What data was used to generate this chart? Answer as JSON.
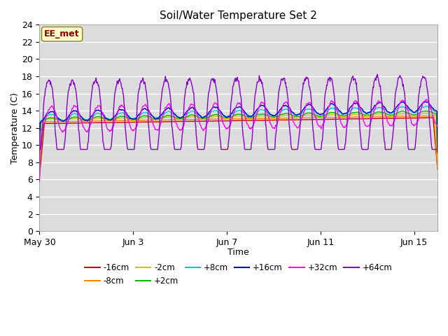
{
  "title": "Soil/Water Temperature Set 2",
  "xlabel": "Time",
  "ylabel": "Temperature (C)",
  "ylim": [
    0,
    24
  ],
  "yticks": [
    0,
    2,
    4,
    6,
    8,
    10,
    12,
    14,
    16,
    18,
    20,
    22,
    24
  ],
  "bg_color": "#dcdcdc",
  "fig_color": "#ffffff",
  "colors": {
    "-16cm": "#cc0000",
    "-8cm": "#ff8800",
    "-2cm": "#cccc00",
    "+2cm": "#00bb00",
    "+8cm": "#00cccc",
    "+16cm": "#0000cc",
    "+32cm": "#ff00ff",
    "+64cm": "#8800cc"
  },
  "annotation_text": "EE_met",
  "x_tick_labels": [
    "May 30",
    "Jun 3",
    "Jun 7",
    "Jun 11",
    "Jun 15"
  ],
  "x_tick_positions": [
    0,
    4,
    8,
    12,
    16
  ],
  "legend_labels": [
    "-16cm",
    "-8cm",
    "-2cm",
    "+2cm",
    "+8cm",
    "+16cm",
    "+32cm",
    "+64cm"
  ],
  "n_days": 17,
  "n_per_day": 48
}
